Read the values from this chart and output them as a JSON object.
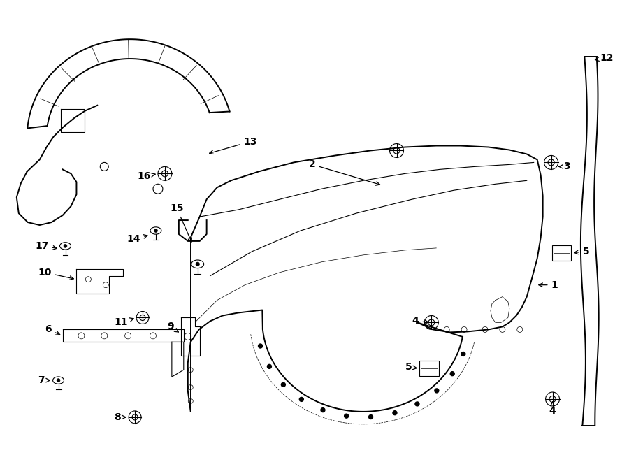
{
  "bg_color": "#ffffff",
  "line_color": "#000000",
  "lw_main": 1.4,
  "lw_thin": 0.8,
  "lw_detail": 0.5,
  "label_fontsize": 10,
  "fig_w": 9.0,
  "fig_h": 6.61,
  "dpi": 100
}
